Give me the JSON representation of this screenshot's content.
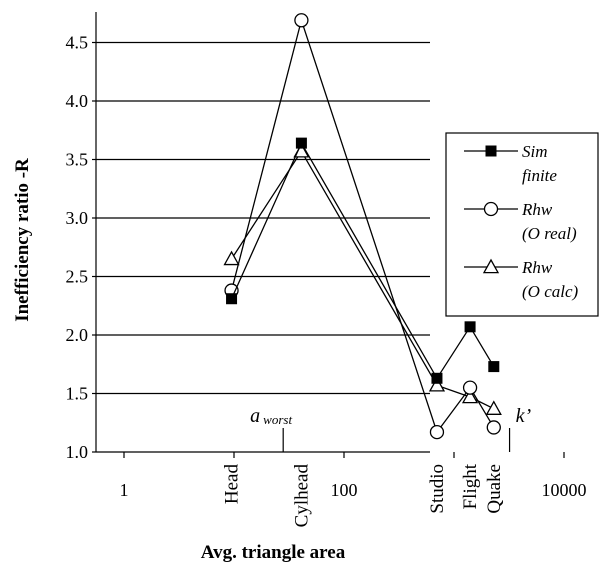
{
  "chart_data": {
    "type": "line",
    "x_scale": "log",
    "y_scale": "linear",
    "ylabel": "Inefficiency ratio -R",
    "xlabel": "Avg. triangle area",
    "ylim": [
      1.0,
      4.85
    ],
    "y_major_step": 0.5,
    "xlim": [
      1,
      10000
    ],
    "grid": "horizontal",
    "x_ticks": [
      {
        "value": 1,
        "label": "1"
      },
      {
        "value": 100,
        "label": "100"
      },
      {
        "value": 10000,
        "label": "10000"
      }
    ],
    "y_ticks": [
      {
        "value": 1.0,
        "label": "1.0"
      },
      {
        "value": 1.5,
        "label": "1.5"
      },
      {
        "value": 2.0,
        "label": "2.0"
      },
      {
        "value": 2.5,
        "label": "2.5"
      },
      {
        "value": 3.0,
        "label": "3.0"
      },
      {
        "value": 3.5,
        "label": "3.5"
      },
      {
        "value": 4.0,
        "label": "4.0"
      },
      {
        "value": 4.5,
        "label": "4.5"
      }
    ],
    "categories": [
      {
        "name": "Head",
        "x": 9.5
      },
      {
        "name": "Cylhead",
        "x": 41
      },
      {
        "name": "Studio",
        "x": 700
      },
      {
        "name": "Flight",
        "x": 1400
      },
      {
        "name": "Quake",
        "x": 2300
      }
    ],
    "series": [
      {
        "name_lines": [
          "Sim",
          "finite"
        ],
        "marker": "filled-square",
        "values": [
          2.31,
          3.64,
          1.63,
          2.07,
          1.73
        ]
      },
      {
        "name_lines": [
          "Rhw",
          "(O real)"
        ],
        "marker": "open-circle",
        "values": [
          2.38,
          4.69,
          1.17,
          1.55,
          1.21
        ]
      },
      {
        "name_lines": [
          "Rhw",
          "(O calc)"
        ],
        "marker": "open-triangle",
        "values": [
          2.65,
          3.57,
          1.57,
          1.47,
          1.37
        ]
      }
    ],
    "annotations": [
      {
        "id": "a-worst",
        "main": "a",
        "sub": "worst",
        "x": 28
      },
      {
        "id": "k-prime",
        "main": "k’",
        "x": 3200
      }
    ],
    "legend_position": "right"
  }
}
